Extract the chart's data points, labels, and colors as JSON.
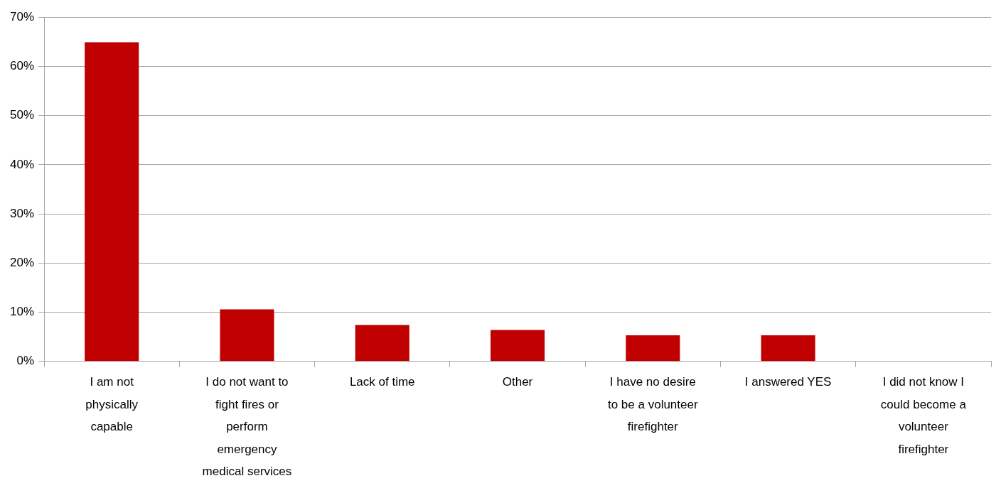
{
  "chart_data": {
    "type": "bar",
    "categories": [
      "I am not physically capable",
      "I do not want to fight fires or perform emergency medical services",
      "Lack of time",
      "Other",
      "I have no desire to be a volunteer firefighter",
      "I answered YES",
      "I did not know I could become a volunteer firefighter"
    ],
    "values": [
      64.9,
      10.6,
      7.4,
      6.4,
      5.3,
      5.3,
      0
    ],
    "color": "#c00000",
    "ylim": [
      0,
      70
    ],
    "yticks": [
      {
        "value": 0,
        "label": "0%"
      },
      {
        "value": 10,
        "label": "10%"
      },
      {
        "value": 20,
        "label": "20%"
      },
      {
        "value": 30,
        "label": "30%"
      },
      {
        "value": 40,
        "label": "40%"
      },
      {
        "value": 50,
        "label": "50%"
      },
      {
        "value": 60,
        "label": "60%"
      },
      {
        "value": 70,
        "label": "70%"
      }
    ],
    "grid": "y"
  }
}
